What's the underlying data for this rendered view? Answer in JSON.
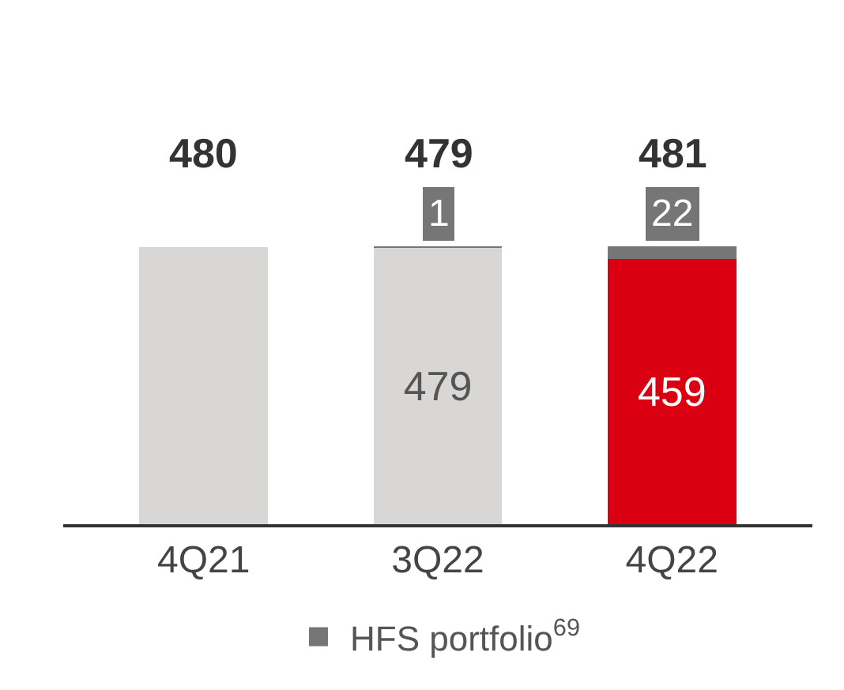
{
  "chart_data": {
    "type": "bar",
    "stacked": true,
    "categories": [
      "4Q21",
      "3Q22",
      "4Q22"
    ],
    "series": [
      {
        "colors": [
          "#d8d7d5",
          "#d8d7d5",
          "#db0011"
        ],
        "values": [
          480,
          479,
          459
        ],
        "value_labels": [
          null,
          "479",
          "459"
        ]
      },
      {
        "name": "HFS portfolio$^{69}$",
        "color": "#767676",
        "values": [
          null,
          1,
          22
        ],
        "value_labels": [
          null,
          "1",
          "22"
        ]
      }
    ],
    "totals": [
      "480",
      "479",
      "481"
    ],
    "legend": "bottom"
  }
}
